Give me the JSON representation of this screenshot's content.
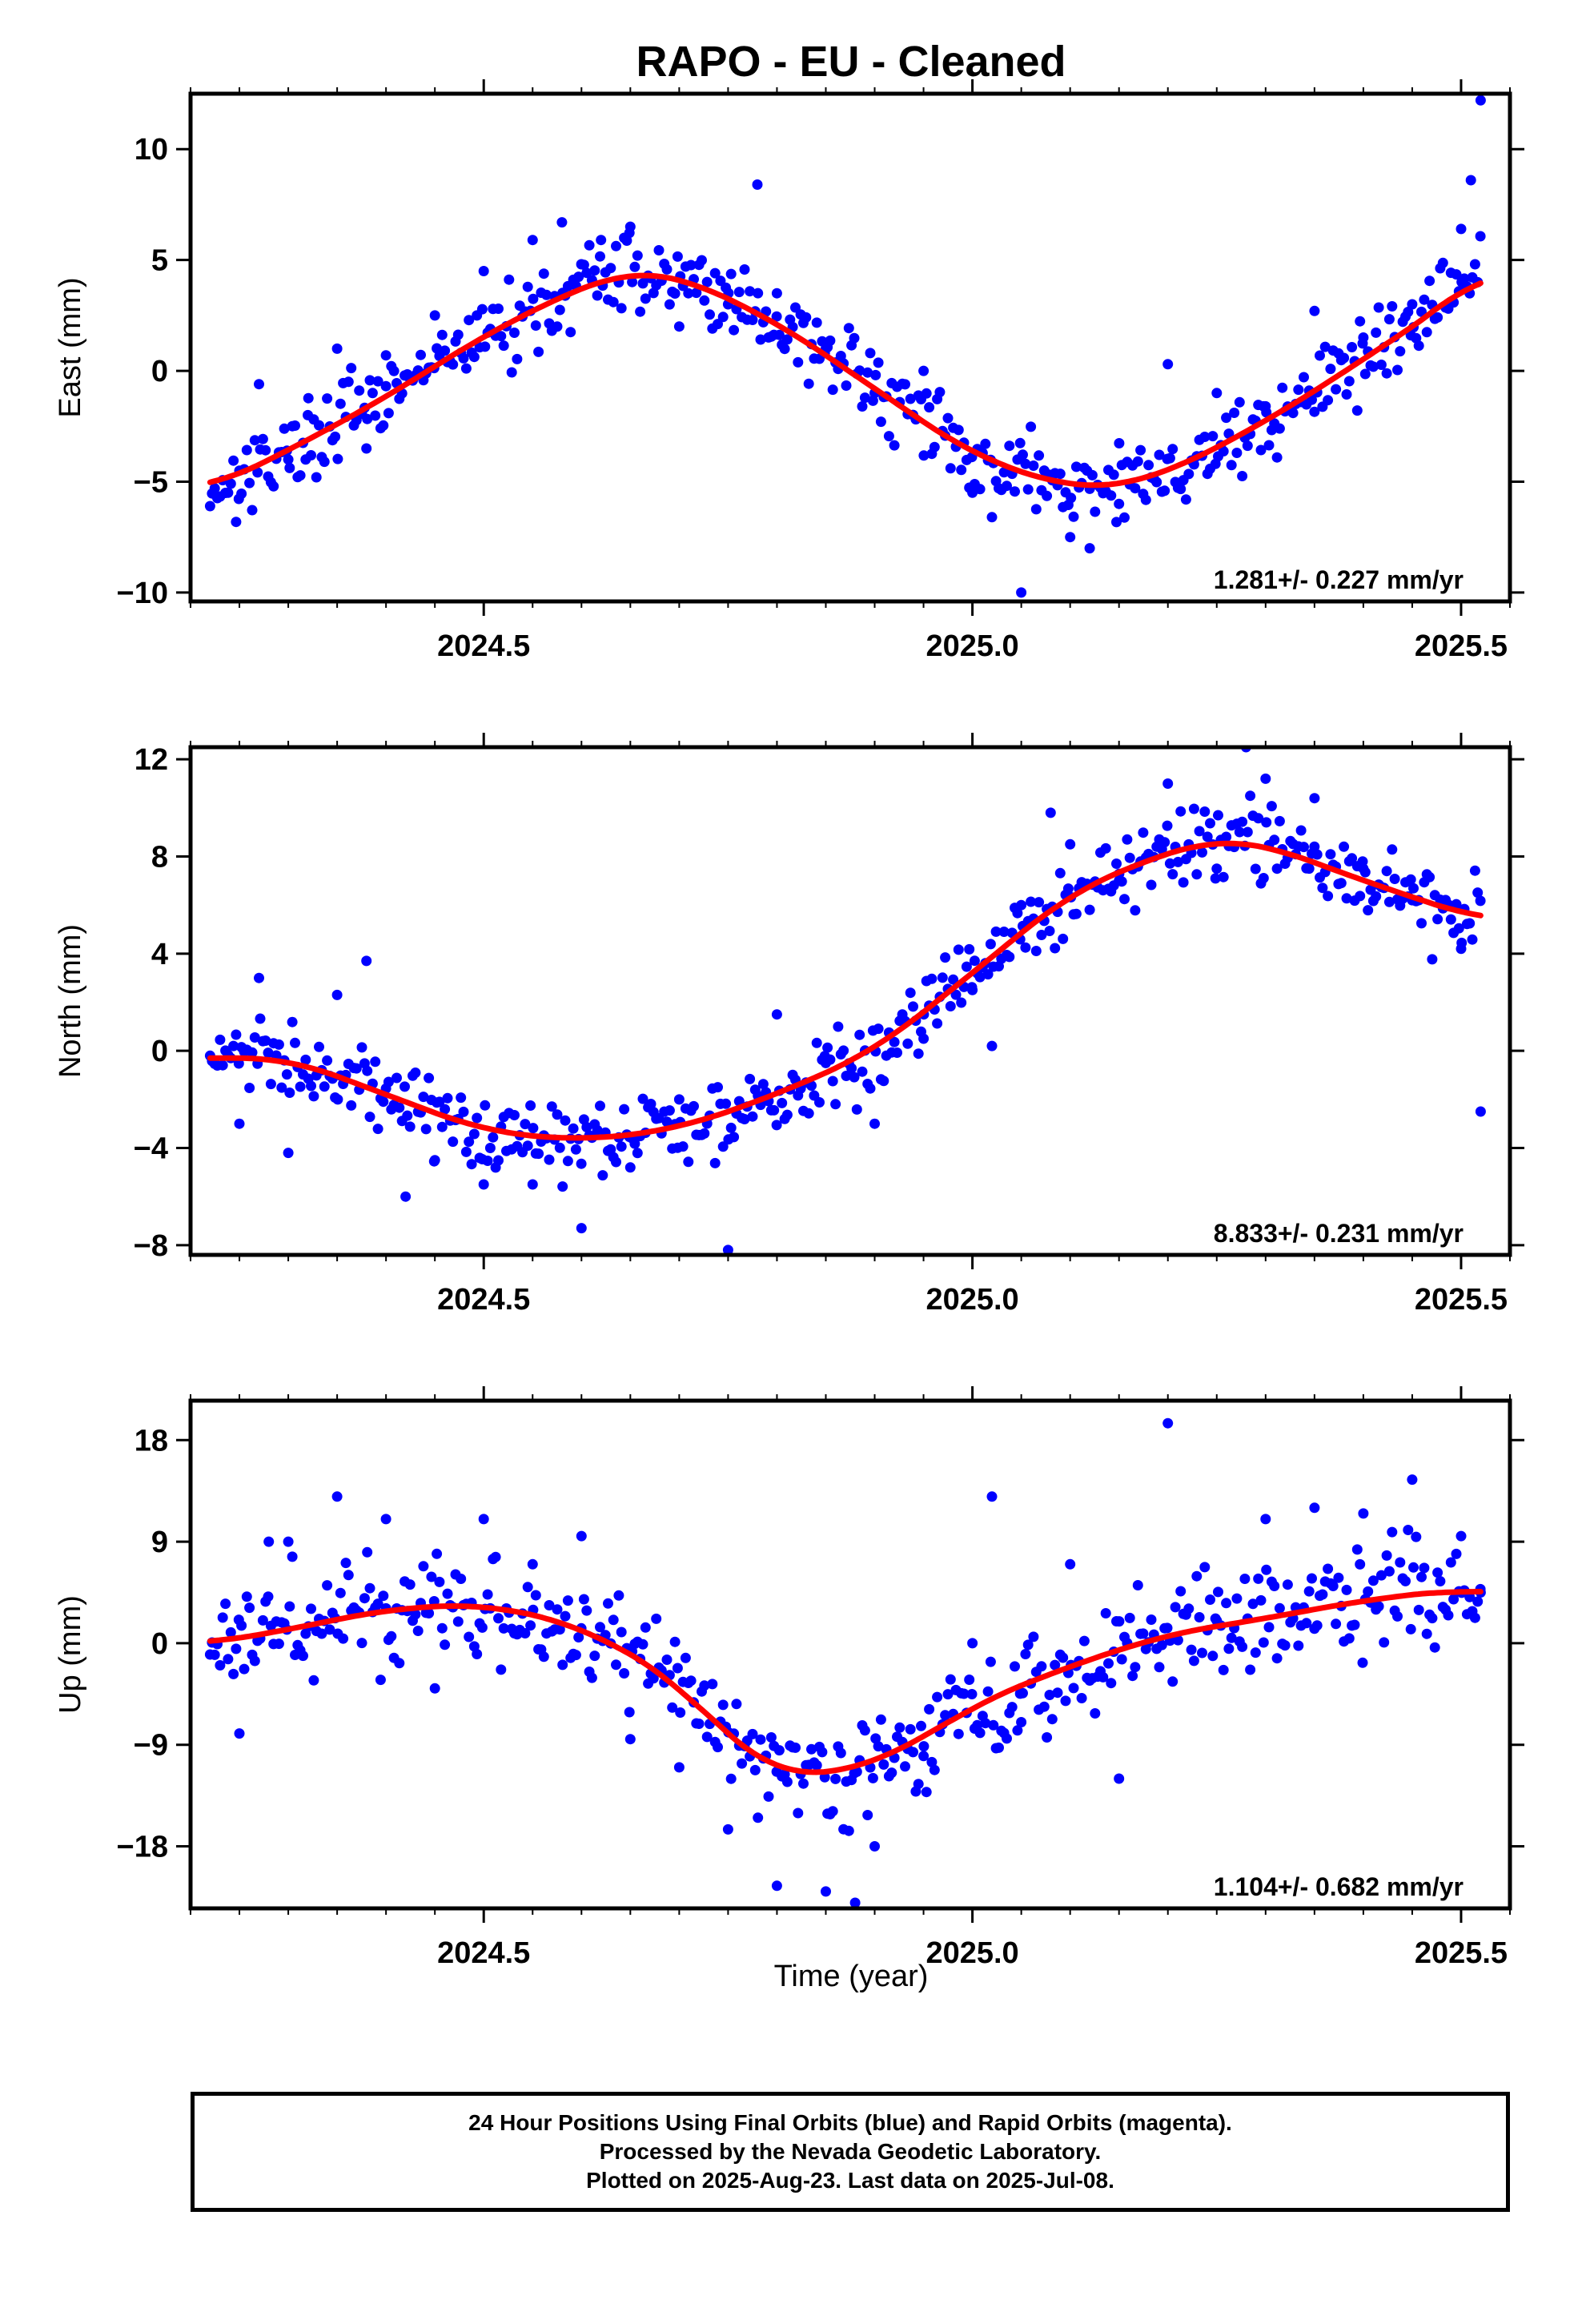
{
  "title": "RAPO  - EU - Cleaned",
  "xlabel": "Time (year)",
  "colors": {
    "final_orbits": "#0000ff",
    "rapid_orbits": "#ff00ff",
    "fit": "#ff0000",
    "frame": "#000000"
  },
  "chart_data": [
    {
      "type": "scatter",
      "panel": "east",
      "ylabel": "East (mm)",
      "xlim": [
        2024.2,
        2025.55
      ],
      "ylim": [
        -10.4,
        12.5
      ],
      "yticks": [
        -10,
        -5,
        0,
        5,
        10
      ],
      "xticks": [
        2024.5,
        2025.0,
        2025.5
      ],
      "xtick_labels": [
        "2024.5",
        "2025.0",
        "2025.5"
      ],
      "rate_label": "1.281+/- 0.227 mm/yr",
      "trend": {
        "rate_mm_per_yr": 1.281,
        "uncertainty": 0.227
      },
      "fit_curve": {
        "name": "fit",
        "x": [
          2024.22,
          2024.3,
          2024.4,
          2024.5,
          2024.6,
          2024.65,
          2024.7,
          2024.8,
          2024.9,
          2025.0,
          2025.1,
          2025.15,
          2025.2,
          2025.3,
          2025.4,
          2025.5,
          2025.52
        ],
        "y": [
          -5.3,
          -3.6,
          -1.2,
          1.6,
          3.8,
          4.5,
          4.3,
          2.2,
          -0.8,
          -3.8,
          -5.3,
          -5.2,
          -4.6,
          -2.3,
          0.5,
          3.5,
          4.5
        ]
      },
      "points_summary": {
        "name": "Final Orbits (blue)",
        "x": [
          2024.22,
          2024.25,
          2024.27,
          2024.3,
          2024.32,
          2024.35,
          2024.38,
          2024.4,
          2024.45,
          2024.5,
          2024.55,
          2024.58,
          2024.62,
          2024.65,
          2024.7,
          2024.75,
          2024.78,
          2024.8,
          2024.85,
          2024.9,
          2024.95,
          2025.0,
          2025.02,
          2025.05,
          2025.1,
          2025.12,
          2025.15,
          2025.2,
          2025.25,
          2025.3,
          2025.35,
          2025.4,
          2025.45,
          2025.5,
          2025.51,
          2025.52
        ],
        "y": [
          -6.1,
          -4.5,
          -0.6,
          -4.0,
          -2.0,
          1.0,
          -3.5,
          0.7,
          2.5,
          4.5,
          5.9,
          6.7,
          5.9,
          6.5,
          2.0,
          3.0,
          8.4,
          3.5,
          1.0,
          -1.0,
          0.0,
          -5.5,
          -6.6,
          -10.0,
          -7.5,
          -8.0,
          -6.0,
          0.3,
          -1.0,
          -1.6,
          2.7,
          1.5,
          3.0,
          6.4,
          8.6,
          12.2
        ]
      }
    },
    {
      "type": "scatter",
      "panel": "north",
      "ylabel": "North (mm)",
      "xlim": [
        2024.2,
        2025.55
      ],
      "ylim": [
        -8.4,
        12.5
      ],
      "yticks": [
        -8,
        -4,
        0,
        4,
        8,
        12
      ],
      "xticks": [
        2024.5,
        2025.0,
        2025.5
      ],
      "xtick_labels": [
        "2024.5",
        "2025.0",
        "2025.5"
      ],
      "rate_label": "8.833+/- 0.231 mm/yr",
      "trend": {
        "rate_mm_per_yr": 8.833,
        "uncertainty": 0.231
      },
      "fit_curve": {
        "name": "fit",
        "x": [
          2024.22,
          2024.3,
          2024.4,
          2024.5,
          2024.6,
          2024.7,
          2024.8,
          2024.9,
          2025.0,
          2025.1,
          2025.2,
          2025.25,
          2025.3,
          2025.4,
          2025.52
        ],
        "y": [
          -0.3,
          -0.3,
          -1.8,
          -3.3,
          -3.7,
          -3.2,
          -1.8,
          0.0,
          3.2,
          6.5,
          8.2,
          8.7,
          8.5,
          7.0,
          5.4
        ]
      },
      "points_summary": {
        "name": "Final Orbits (blue)",
        "x": [
          2024.22,
          2024.25,
          2024.27,
          2024.3,
          2024.35,
          2024.38,
          2024.42,
          2024.45,
          2024.5,
          2024.55,
          2024.6,
          2024.65,
          2024.7,
          2024.75,
          2024.8,
          2024.85,
          2024.9,
          2024.95,
          2025.0,
          2025.02,
          2025.05,
          2025.08,
          2025.1,
          2025.15,
          2025.2,
          2025.25,
          2025.28,
          2025.3,
          2025.35,
          2025.4,
          2025.45,
          2025.5,
          2025.52
        ],
        "y": [
          -0.2,
          -3.0,
          3.0,
          -4.2,
          2.3,
          3.7,
          -6.0,
          -4.5,
          -5.5,
          -5.5,
          -7.3,
          -4.8,
          -2.0,
          -8.2,
          1.5,
          -0.5,
          -3.0,
          0.5,
          2.5,
          0.2,
          6.0,
          9.8,
          8.5,
          7.0,
          11.0,
          7.5,
          12.5,
          11.2,
          10.4,
          7.5,
          6.2,
          4.2,
          -2.5
        ]
      }
    },
    {
      "type": "scatter",
      "panel": "up",
      "ylabel": "Up (mm)",
      "xlim": [
        2024.2,
        2025.55
      ],
      "ylim": [
        -23.5,
        21.5
      ],
      "yticks": [
        -18,
        -9,
        0,
        9,
        18
      ],
      "xticks": [
        2024.5,
        2025.0,
        2025.5
      ],
      "xtick_labels": [
        "2024.5",
        "2025.0",
        "2025.5"
      ],
      "rate_label": "1.104+/- 0.682 mm/yr",
      "trend": {
        "rate_mm_per_yr": 1.104,
        "uncertainty": 0.682
      },
      "fit_curve": {
        "name": "fit",
        "x": [
          2024.22,
          2024.3,
          2024.4,
          2024.5,
          2024.6,
          2024.7,
          2024.75,
          2024.8,
          2024.85,
          2024.9,
          2024.95,
          2025.0,
          2025.1,
          2025.2,
          2025.3,
          2025.4,
          2025.5,
          2025.52
        ],
        "y": [
          0.0,
          1.2,
          3.0,
          3.5,
          1.5,
          -3.5,
          -8.5,
          -11.5,
          -11.8,
          -10.5,
          -8.5,
          -5.5,
          -2.0,
          0.8,
          2.2,
          3.8,
          4.8,
          4.5
        ]
      },
      "points_summary": {
        "name": "Final Orbits (blue)",
        "x": [
          2024.22,
          2024.25,
          2024.28,
          2024.3,
          2024.35,
          2024.4,
          2024.45,
          2024.5,
          2024.55,
          2024.6,
          2024.65,
          2024.7,
          2024.75,
          2024.8,
          2024.85,
          2024.88,
          2024.9,
          2024.95,
          2025.0,
          2025.02,
          2025.05,
          2025.1,
          2025.15,
          2025.2,
          2025.25,
          2025.3,
          2025.35,
          2025.4,
          2025.45,
          2025.5,
          2025.52
        ],
        "y": [
          -1.0,
          -8.0,
          9.0,
          9.0,
          13.0,
          11.0,
          -4.0,
          11.0,
          7.0,
          9.5,
          -8.5,
          -11.0,
          -16.5,
          -21.5,
          -22.0,
          -23.0,
          -18.0,
          -10.0,
          0.0,
          13.0,
          -7.0,
          7.0,
          -12.0,
          19.5,
          2.0,
          11.0,
          12.0,
          11.5,
          14.5,
          9.5,
          4.5
        ]
      }
    }
  ],
  "footer": {
    "line1": "24 Hour Positions Using Final Orbits (blue) and Rapid Orbits (magenta).",
    "line2": "Processed by the Nevada Geodetic Laboratory.",
    "line3": "Plotted on 2025-Aug-23. Last data on 2025-Jul-08."
  }
}
